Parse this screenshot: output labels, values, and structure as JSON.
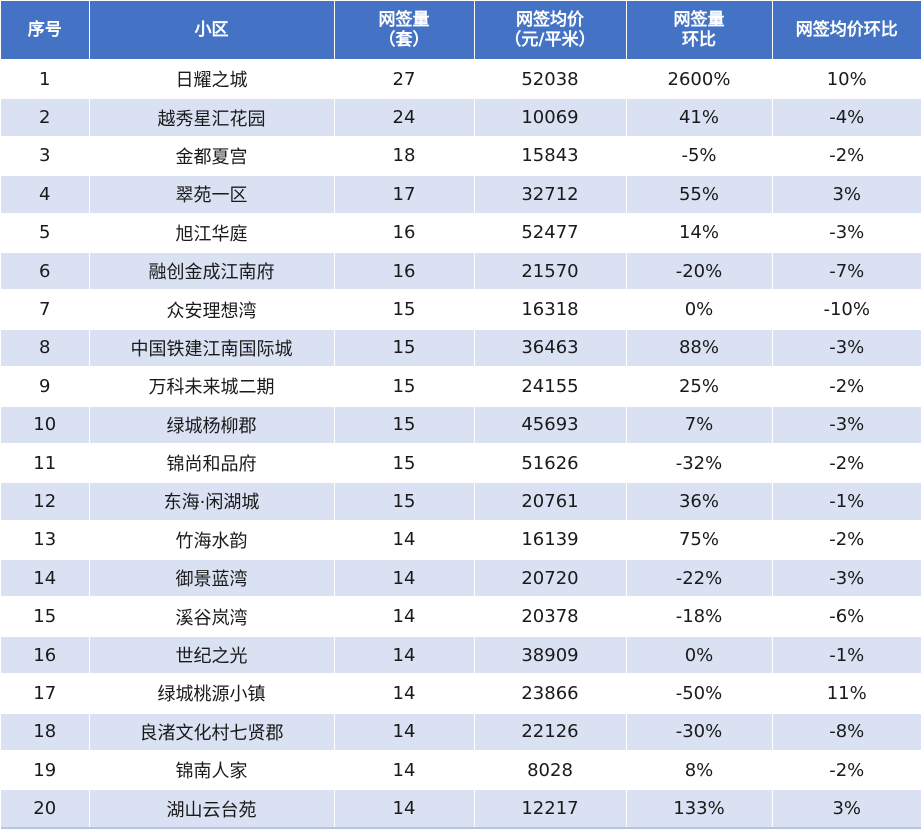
{
  "header": {
    "col_rank": "序号",
    "col_name": "小区",
    "col_volume": [
      "网签量",
      "（套）"
    ],
    "col_price": [
      "网签均价",
      "（元/平米）"
    ],
    "col_volume_mom": [
      "网签量",
      "环比"
    ],
    "col_price_mom": "网签均价环比"
  },
  "rows": [
    {
      "rank": "1",
      "name": "日耀之城",
      "volume": "27",
      "price": "52038",
      "volume_mom": "2600%",
      "price_mom": "10%"
    },
    {
      "rank": "2",
      "name": "越秀星汇花园",
      "volume": "24",
      "price": "10069",
      "volume_mom": "41%",
      "price_mom": "-4%"
    },
    {
      "rank": "3",
      "name": "金都夏宫",
      "volume": "18",
      "price": "15843",
      "volume_mom": "-5%",
      "price_mom": "-2%"
    },
    {
      "rank": "4",
      "name": "翠苑一区",
      "volume": "17",
      "price": "32712",
      "volume_mom": "55%",
      "price_mom": "3%"
    },
    {
      "rank": "5",
      "name": "旭江华庭",
      "volume": "16",
      "price": "52477",
      "volume_mom": "14%",
      "price_mom": "-3%"
    },
    {
      "rank": "6",
      "name": "融创金成江南府",
      "volume": "16",
      "price": "21570",
      "volume_mom": "-20%",
      "price_mom": "-7%"
    },
    {
      "rank": "7",
      "name": "众安理想湾",
      "volume": "15",
      "price": "16318",
      "volume_mom": "0%",
      "price_mom": "-10%"
    },
    {
      "rank": "8",
      "name": "中国铁建江南国际城",
      "volume": "15",
      "price": "36463",
      "volume_mom": "88%",
      "price_mom": "-3%"
    },
    {
      "rank": "9",
      "name": "万科未来城二期",
      "volume": "15",
      "price": "24155",
      "volume_mom": "25%",
      "price_mom": "-2%"
    },
    {
      "rank": "10",
      "name": "绿城杨柳郡",
      "volume": "15",
      "price": "45693",
      "volume_mom": "7%",
      "price_mom": "-3%"
    },
    {
      "rank": "11",
      "name": "锦尚和品府",
      "volume": "15",
      "price": "51626",
      "volume_mom": "-32%",
      "price_mom": "-2%"
    },
    {
      "rank": "12",
      "name": "东海·闲湖城",
      "volume": "15",
      "price": "20761",
      "volume_mom": "36%",
      "price_mom": "-1%"
    },
    {
      "rank": "13",
      "name": "竹海水韵",
      "volume": "14",
      "price": "16139",
      "volume_mom": "75%",
      "price_mom": "-2%"
    },
    {
      "rank": "14",
      "name": "御景蓝湾",
      "volume": "14",
      "price": "20720",
      "volume_mom": "-22%",
      "price_mom": "-3%"
    },
    {
      "rank": "15",
      "name": "溪谷岚湾",
      "volume": "14",
      "price": "20378",
      "volume_mom": "-18%",
      "price_mom": "-6%"
    },
    {
      "rank": "16",
      "name": "世纪之光",
      "volume": "14",
      "price": "38909",
      "volume_mom": "0%",
      "price_mom": "-1%"
    },
    {
      "rank": "17",
      "name": "绿城桃源小镇",
      "volume": "14",
      "price": "23866",
      "volume_mom": "-50%",
      "price_mom": "11%"
    },
    {
      "rank": "18",
      "name": "良渚文化村七贤郡",
      "volume": "14",
      "price": "22126",
      "volume_mom": "-30%",
      "price_mom": "-8%"
    },
    {
      "rank": "19",
      "name": "锦南人家",
      "volume": "14",
      "price": "8028",
      "volume_mom": "8%",
      "price_mom": "-2%"
    },
    {
      "rank": "20",
      "name": "湖山云台苑",
      "volume": "14",
      "price": "12217",
      "volume_mom": "133%",
      "price_mom": "3%"
    }
  ]
}
